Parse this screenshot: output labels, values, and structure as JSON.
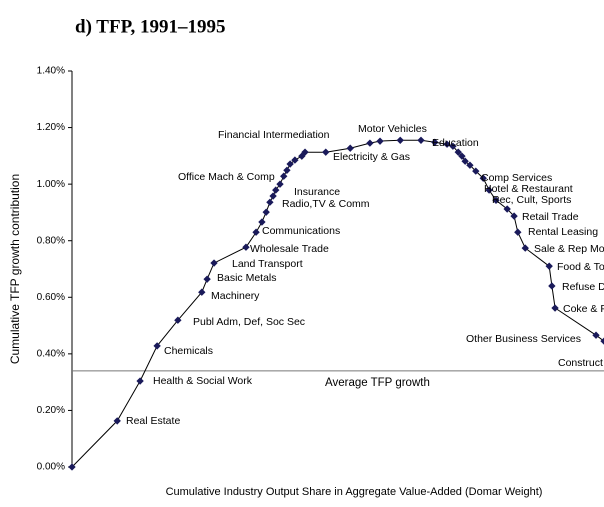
{
  "chart_data": {
    "type": "line",
    "title": "d) TFP, 1991–1995",
    "ylabel": "Cumulative TFP growth contribution",
    "xlabel": "Cumulative Industry Output Share in Aggregate Value-Added (Domar Weight)",
    "color": "#1a1a5a",
    "x": [
      0,
      0.085,
      0.128,
      0.16,
      0.199,
      0.244,
      0.254,
      0.267,
      0.327,
      0.346,
      0.357,
      0.365,
      0.372,
      0.378,
      0.383,
      0.391,
      0.398,
      0.404,
      0.41,
      0.419,
      0.432,
      0.438,
      0.477,
      0.523,
      0.56,
      0.579,
      0.617,
      0.656,
      0.682,
      0.705,
      0.716,
      0.726,
      0.733,
      0.739,
      0.748,
      0.759,
      0.773,
      0.784,
      0.797,
      0.818,
      0.831,
      0.838,
      0.852,
      0.897,
      0.902,
      0.908,
      0.985,
      1
    ],
    "values": [
      0,
      0.163,
      0.304,
      0.428,
      0.519,
      0.618,
      0.664,
      0.721,
      0.777,
      0.83,
      0.866,
      0.901,
      0.936,
      0.958,
      0.979,
      1.0,
      1.028,
      1.049,
      1.071,
      1.085,
      1.099,
      1.113,
      1.113,
      1.127,
      1.145,
      1.152,
      1.155,
      1.155,
      1.148,
      1.141,
      1.134,
      1.113,
      1.099,
      1.081,
      1.067,
      1.046,
      1.021,
      0.979,
      0.943,
      0.912,
      0.887,
      0.83,
      0.774,
      0.71,
      0.64,
      0.562,
      0.466,
      0.445
    ],
    "xlim": [
      0,
      1
    ],
    "ylim": [
      0,
      1.4
    ],
    "yticks": [
      {
        "value": 0,
        "label": "0.00%"
      },
      {
        "value": 0.2,
        "label": "0.20%"
      },
      {
        "value": 0.4,
        "label": "0.40%"
      },
      {
        "value": 0.6,
        "label": "0.60%"
      },
      {
        "value": 0.8,
        "label": "0.80%"
      },
      {
        "value": 1.0,
        "label": "1.00%"
      },
      {
        "value": 1.2,
        "label": "1.20%"
      },
      {
        "value": 1.4,
        "label": "1.40%"
      }
    ],
    "average": 0.34,
    "average_label": "Average TFP growth",
    "annotations": [
      "Financial Intermediation",
      "Motor Vehicles",
      "Education",
      "Electricity & Gas",
      "Office Mach & Comp",
      "Insurance",
      "Radio,TV & Comm",
      "Comp Services",
      "Hotel & Restaurant",
      "Rec, Cult, Sports",
      "Retail Trade",
      "Rental Leasing",
      "Sale & Rep Motor V",
      "Food & Tobac",
      "Refuse Disp",
      "Coke & Petrole",
      "Communications",
      "Wholesale Trade",
      "Land Transport",
      "Basic Metals",
      "Machinery",
      "Other Business Services",
      "Construct",
      "Publ Adm, Def, Soc Sec",
      "Chemicals",
      "Health & Social Work",
      "Real Estate"
    ]
  }
}
